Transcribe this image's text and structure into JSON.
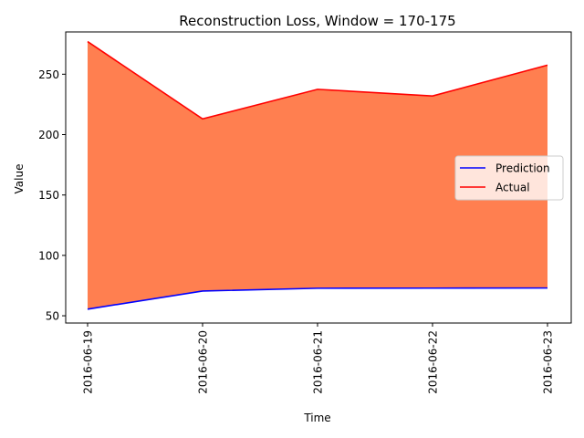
{
  "chart_data": {
    "type": "area",
    "title": "Reconstruction Loss, Window = 170-175",
    "xlabel": "Time",
    "ylabel": "Value",
    "categories": [
      "2016-06-19",
      "2016-06-20",
      "2016-06-21",
      "2016-06-22",
      "2016-06-23"
    ],
    "ylim": [
      44,
      285
    ],
    "yticks": [
      50,
      100,
      150,
      200,
      250
    ],
    "grid": false,
    "legend_position": "center-right",
    "series": [
      {
        "name": "Prediction",
        "color": "#0000ff",
        "values": [
          55.5,
          70.5,
          72.8,
          72.9,
          73.0
        ]
      },
      {
        "name": "Actual",
        "color": "#ff0000",
        "values": [
          277,
          213,
          237.5,
          232,
          257.5
        ]
      }
    ],
    "fill_color": "#ff7f50"
  }
}
